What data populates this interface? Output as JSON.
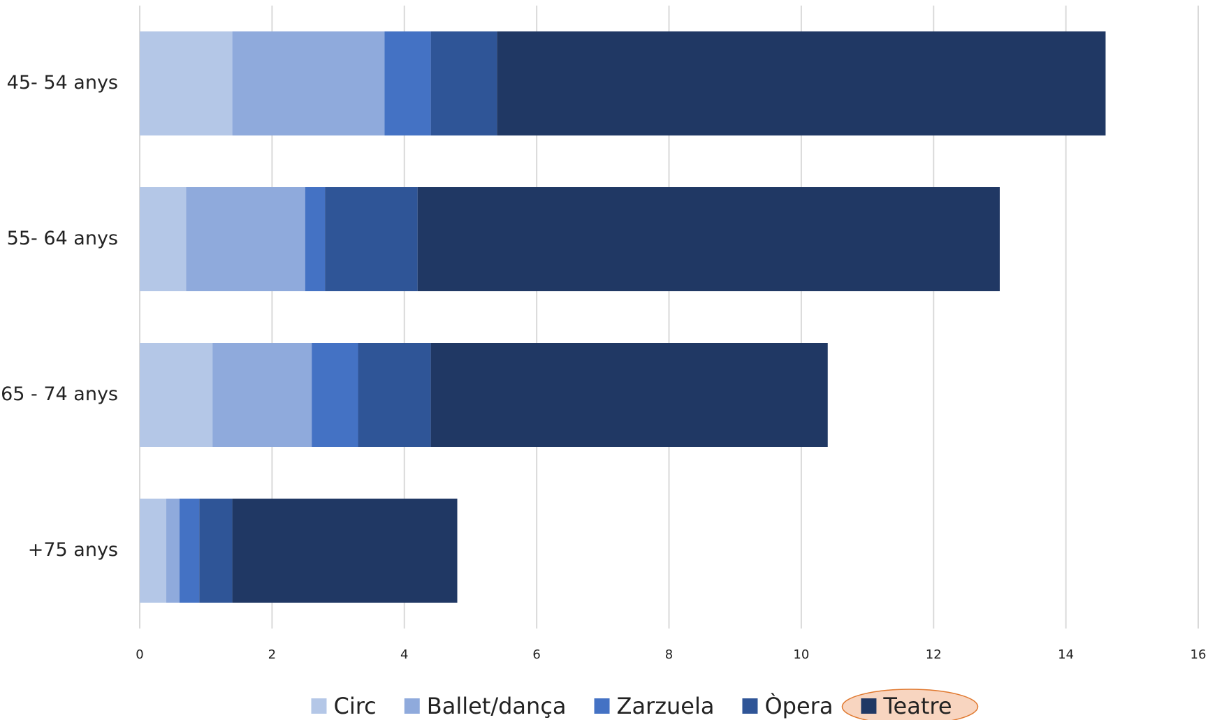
{
  "chart_data": {
    "type": "stacked-bar-horizontal",
    "categories": [
      "45- 54 anys",
      "55- 64 anys",
      "65 - 74 anys",
      "+75 anys"
    ],
    "series": [
      {
        "name": "Circ",
        "color": "#b4c7e7",
        "values": [
          1.4,
          0.7,
          1.1,
          0.4
        ]
      },
      {
        "name": "Ballet/dança",
        "color": "#8faadc",
        "values": [
          2.3,
          1.8,
          1.5,
          0.2
        ]
      },
      {
        "name": "Zarzuela",
        "color": "#4472c4",
        "values": [
          0.7,
          0.3,
          0.7,
          0.3
        ]
      },
      {
        "name": "Òpera",
        "color": "#2f5597",
        "values": [
          1.0,
          1.4,
          1.1,
          0.5
        ]
      },
      {
        "name": "Teatre",
        "color": "#203864",
        "values": [
          9.2,
          8.8,
          6.0,
          3.4
        ]
      }
    ],
    "xlim": [
      0,
      16
    ],
    "xticks": [
      0,
      2,
      4,
      6,
      8,
      10,
      12,
      14,
      16
    ],
    "grid": true,
    "legend": "bottom"
  }
}
